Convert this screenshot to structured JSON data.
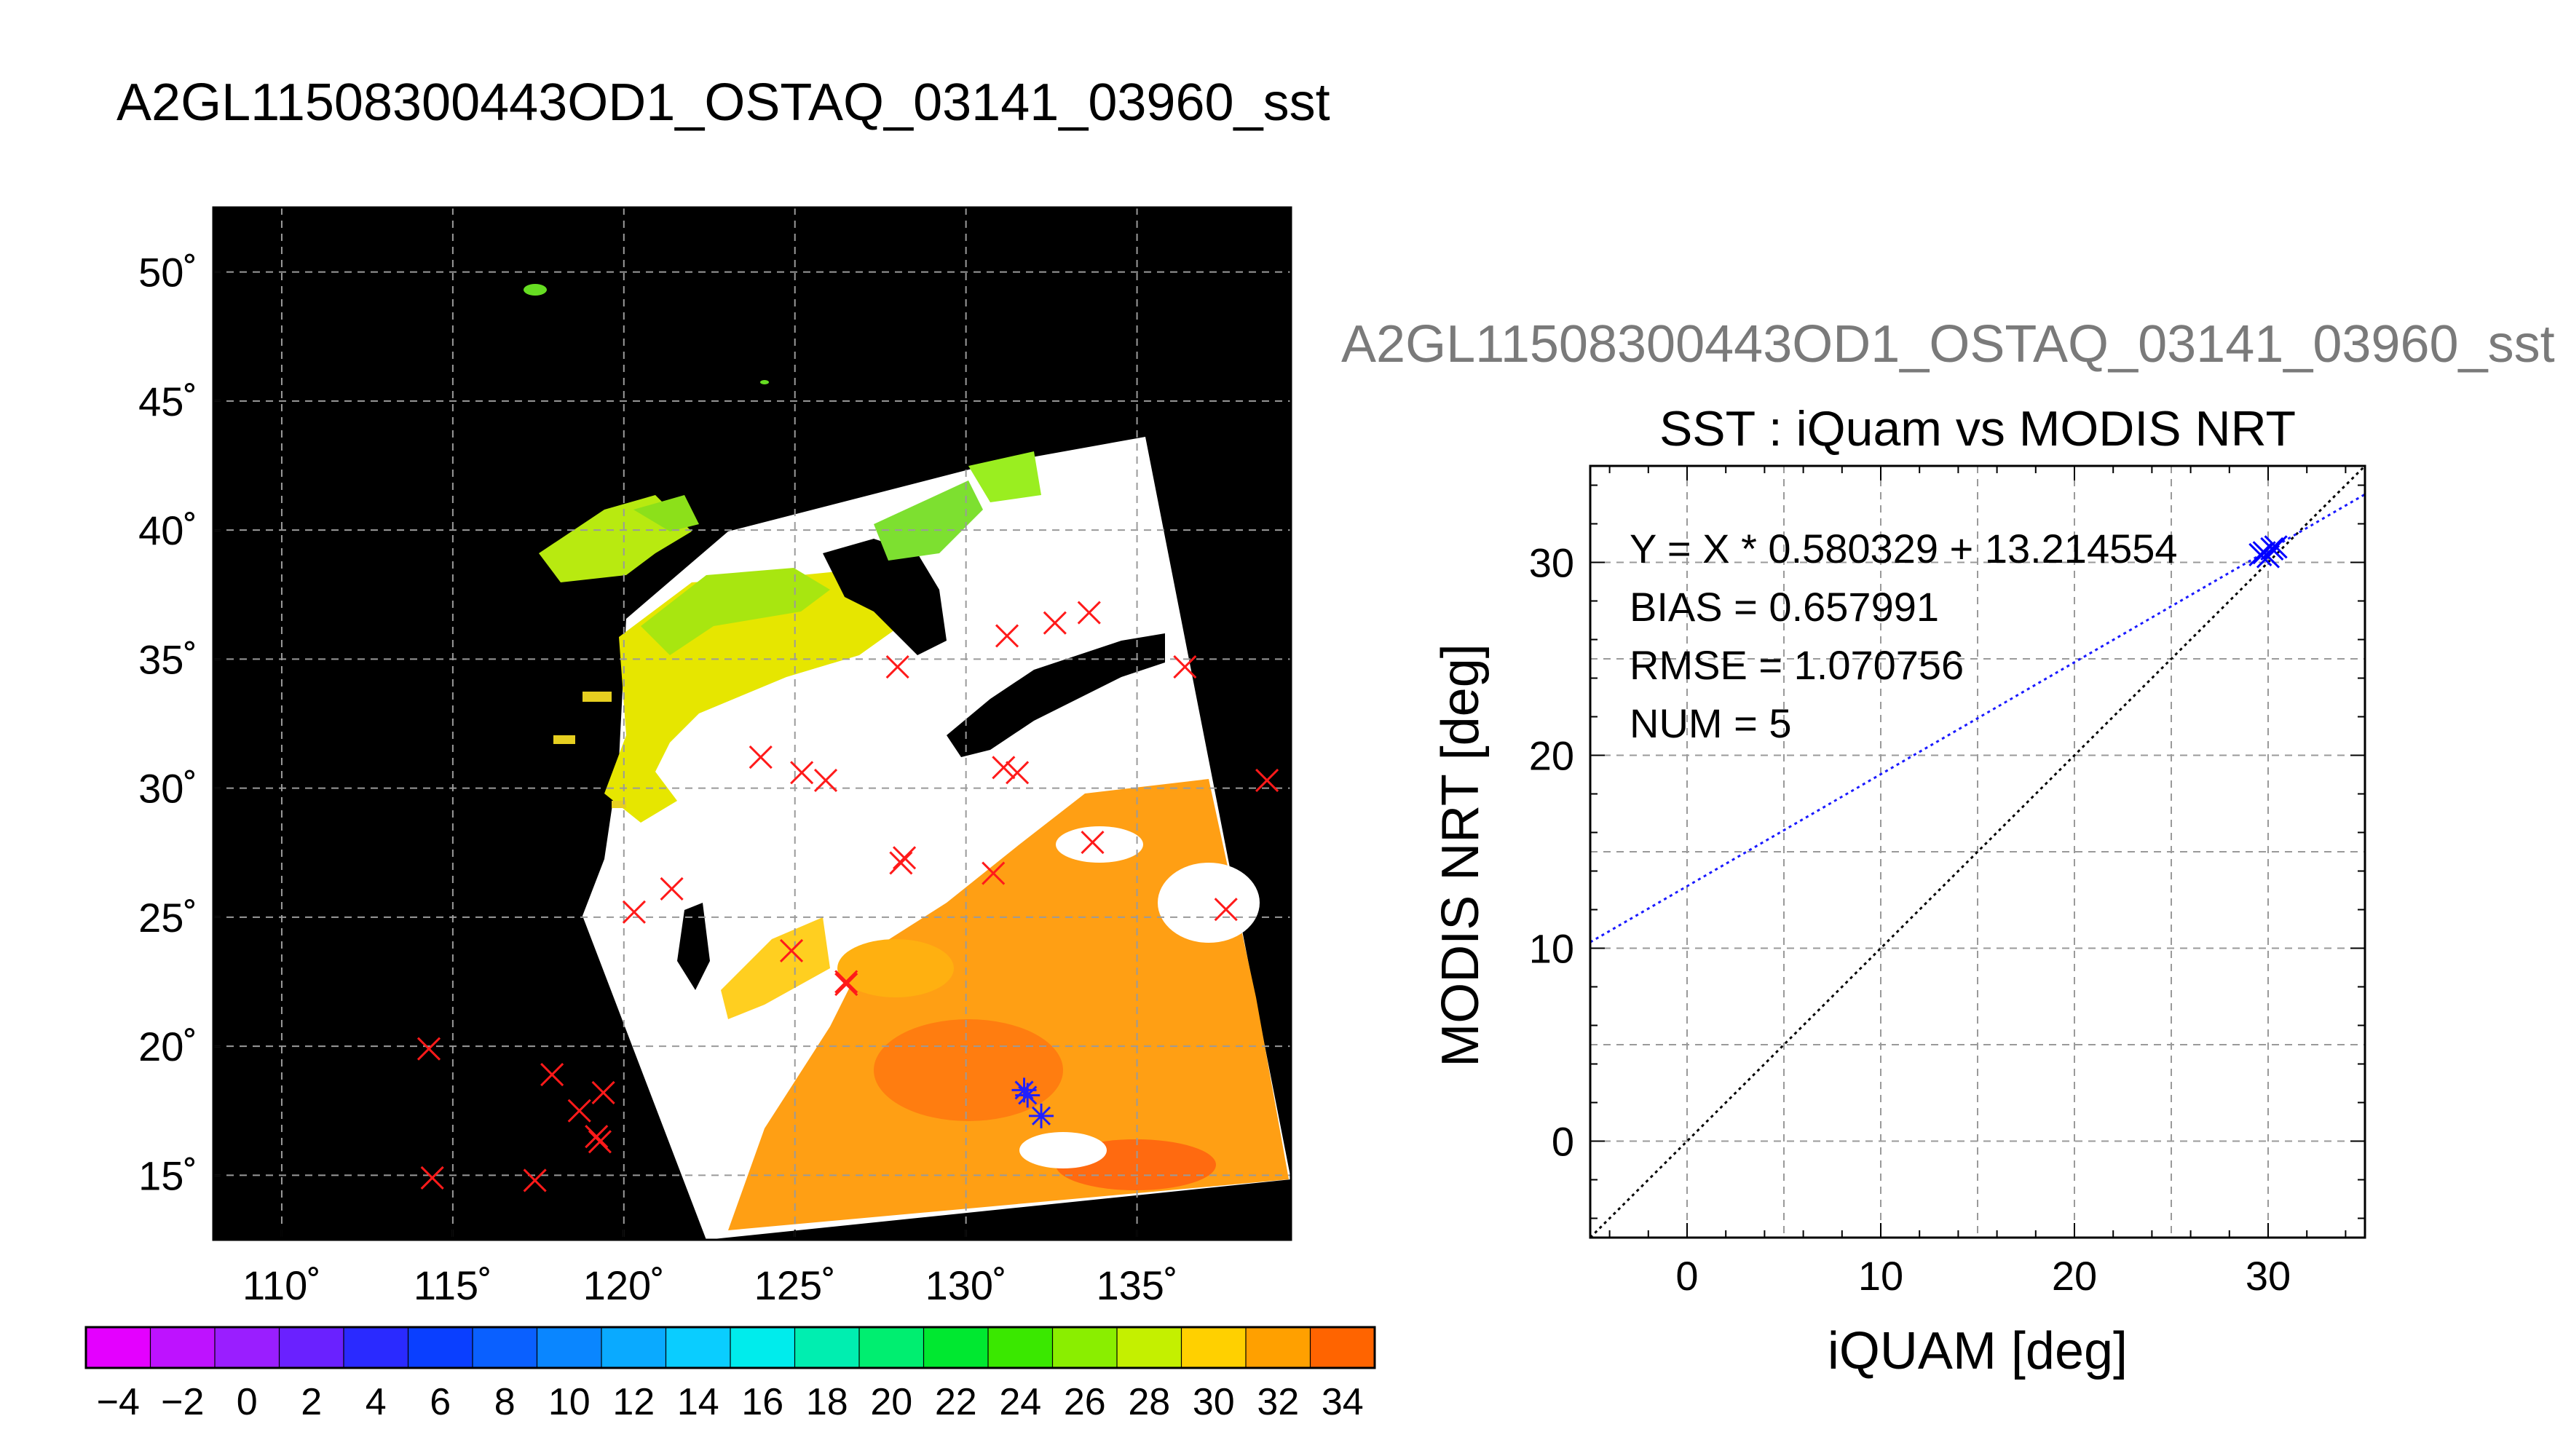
{
  "titles": {
    "main": "A2GL11508300443OD1_OSTAQ_03141_03960_sst",
    "overlay": "A2GL11508300443OD1_OSTAQ_03141_03960_sst"
  },
  "chart_data": [
    {
      "type": "map",
      "xlim": [
        108,
        139.5
      ],
      "ylim": [
        12.5,
        52.5
      ],
      "lon_ticks": [
        110,
        115,
        120,
        125,
        130,
        135
      ],
      "lat_ticks": [
        15,
        20,
        25,
        30,
        35,
        40,
        45,
        50
      ],
      "degree_symbol": "˚",
      "grid": true,
      "insitu_markers_red_x": [
        [
          114.3,
          19.9
        ],
        [
          114.4,
          14.9
        ],
        [
          117.4,
          14.8
        ],
        [
          117.9,
          18.9
        ],
        [
          118.7,
          17.5
        ],
        [
          119.2,
          16.5
        ],
        [
          119.3,
          16.3
        ],
        [
          119.4,
          18.2
        ],
        [
          120.3,
          25.2
        ],
        [
          121.4,
          26.1
        ],
        [
          124.0,
          31.2
        ],
        [
          125.2,
          30.6
        ],
        [
          125.9,
          30.3
        ],
        [
          124.9,
          23.7
        ],
        [
          126.5,
          22.5
        ],
        [
          126.5,
          22.4
        ],
        [
          128.2,
          27.3
        ],
        [
          128.1,
          27.1
        ],
        [
          128.0,
          34.7
        ],
        [
          130.8,
          26.7
        ],
        [
          131.1,
          30.8
        ],
        [
          131.5,
          30.6
        ],
        [
          131.2,
          35.9
        ],
        [
          132.6,
          36.4
        ],
        [
          133.6,
          36.8
        ],
        [
          133.7,
          27.9
        ],
        [
          136.4,
          34.7
        ],
        [
          137.6,
          25.3
        ],
        [
          138.8,
          30.3
        ]
      ],
      "matched_markers_blue_star": [
        [
          131.7,
          18.3
        ],
        [
          131.8,
          18.1
        ],
        [
          132.2,
          17.3
        ]
      ]
    },
    {
      "type": "colorbar",
      "tick_labels": [
        "−4",
        "−2",
        "0",
        "2",
        "4",
        "6",
        "8",
        "10",
        "12",
        "14",
        "16",
        "18",
        "20",
        "22",
        "24",
        "26",
        "28",
        "30",
        "32",
        "34"
      ],
      "range": [
        -5,
        35
      ],
      "n_colors": 20,
      "colors": [
        "#e400ff",
        "#be12ff",
        "#9a1eff",
        "#6a21ff",
        "#2a2aff",
        "#0a3fff",
        "#0a60ff",
        "#0a86ff",
        "#0aaaff",
        "#0acdff",
        "#00ecec",
        "#00eeb0",
        "#00ee70",
        "#00e830",
        "#3ae800",
        "#8aee00",
        "#c4f000",
        "#ffd000",
        "#ffa000",
        "#ff6400"
      ]
    },
    {
      "type": "scatter",
      "title": "SST : iQuam vs MODIS NRT",
      "xlabel": "iQUAM [deg]",
      "ylabel": "MODIS NRT [deg]",
      "xlim": [
        -5,
        35
      ],
      "ylim": [
        -5,
        35
      ],
      "xticks": [
        0,
        10,
        20,
        30
      ],
      "yticks": [
        0,
        10,
        20,
        30
      ],
      "grid": true,
      "annotations": [
        "Y = X * 0.580329 + 13.214554",
        "BIAS = 0.657991",
        "RMSE = 1.070756",
        "NUM = 5"
      ],
      "points": [
        {
          "x": 29.6,
          "y": 30.4
        },
        {
          "x": 29.8,
          "y": 30.5
        },
        {
          "x": 30.0,
          "y": 30.3
        },
        {
          "x": 30.2,
          "y": 30.7
        },
        {
          "x": 30.4,
          "y": 30.8
        }
      ],
      "fit_line": {
        "slope": 0.580329,
        "intercept": 13.214554,
        "color": "#1a1aff",
        "style": "dotted"
      },
      "identity_line": {
        "slope": 1,
        "intercept": 0,
        "color": "#000000",
        "style": "dotted"
      },
      "marker_color": "#0000ff"
    }
  ]
}
